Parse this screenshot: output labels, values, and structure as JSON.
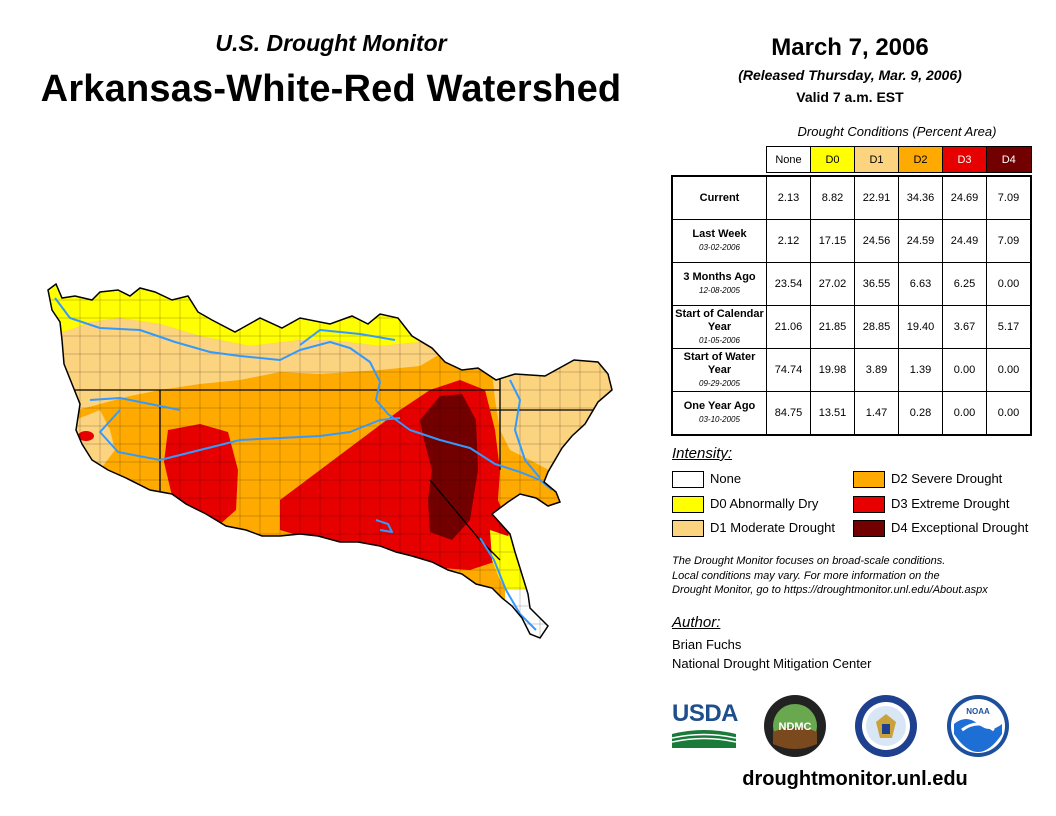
{
  "header": {
    "subtitle": "U.S. Drought Monitor",
    "title": "Arkansas-White-Red Watershed",
    "date": "March 7, 2006",
    "released": "(Released Thursday, Mar. 9, 2006)",
    "valid": "Valid 7 a.m. EST"
  },
  "table": {
    "caption": "Drought Conditions (Percent Area)",
    "columns": [
      "None",
      "D0",
      "D1",
      "D2",
      "D3",
      "D4"
    ],
    "column_colors": [
      "#ffffff",
      "#ffff00",
      "#fcd37f",
      "#ffaa00",
      "#e60000",
      "#730000"
    ],
    "rows": [
      {
        "label": "Current",
        "date": "",
        "values": [
          "2.13",
          "8.82",
          "22.91",
          "34.36",
          "24.69",
          "7.09"
        ]
      },
      {
        "label": "Last Week",
        "date": "03-02-2006",
        "values": [
          "2.12",
          "17.15",
          "24.56",
          "24.59",
          "24.49",
          "7.09"
        ]
      },
      {
        "label": "3 Months Ago",
        "date": "12-08-2005",
        "values": [
          "23.54",
          "27.02",
          "36.55",
          "6.63",
          "6.25",
          "0.00"
        ]
      },
      {
        "label": "Start of Calendar Year",
        "date": "01-05-2006",
        "values": [
          "21.06",
          "21.85",
          "28.85",
          "19.40",
          "3.67",
          "5.17"
        ]
      },
      {
        "label": "Start of Water Year",
        "date": "09-29-2005",
        "values": [
          "74.74",
          "19.98",
          "3.89",
          "1.39",
          "0.00",
          "0.00"
        ]
      },
      {
        "label": "One Year Ago",
        "date": "03-10-2005",
        "values": [
          "84.75",
          "13.51",
          "1.47",
          "0.28",
          "0.00",
          "0.00"
        ]
      }
    ]
  },
  "legend": {
    "title": "Intensity:",
    "items": [
      {
        "label": "None",
        "color": "#ffffff"
      },
      {
        "label": "D0 Abnormally Dry",
        "color": "#ffff00"
      },
      {
        "label": "D1 Moderate Drought",
        "color": "#fcd37f"
      },
      {
        "label": "D2 Severe Drought",
        "color": "#ffaa00"
      },
      {
        "label": "D3 Extreme Drought",
        "color": "#e60000"
      },
      {
        "label": "D4 Exceptional Drought",
        "color": "#730000"
      }
    ]
  },
  "note": {
    "line1": "The Drought Monitor focuses on broad-scale conditions.",
    "line2": "Local conditions may vary. For more information on the",
    "line3": "Drought Monitor, go to https://droughtmonitor.unl.edu/About.aspx"
  },
  "author": {
    "title": "Author:",
    "name": "Brian Fuchs",
    "org": "National Drought Mitigation Center"
  },
  "logos": {
    "usda": "USDA",
    "ndmc": "NDMC",
    "noaa": "NOAA"
  },
  "footer": {
    "site": "droughtmonitor.unl.edu"
  },
  "map": {
    "river_color": "#3399ff",
    "state_line_color": "#000000"
  }
}
